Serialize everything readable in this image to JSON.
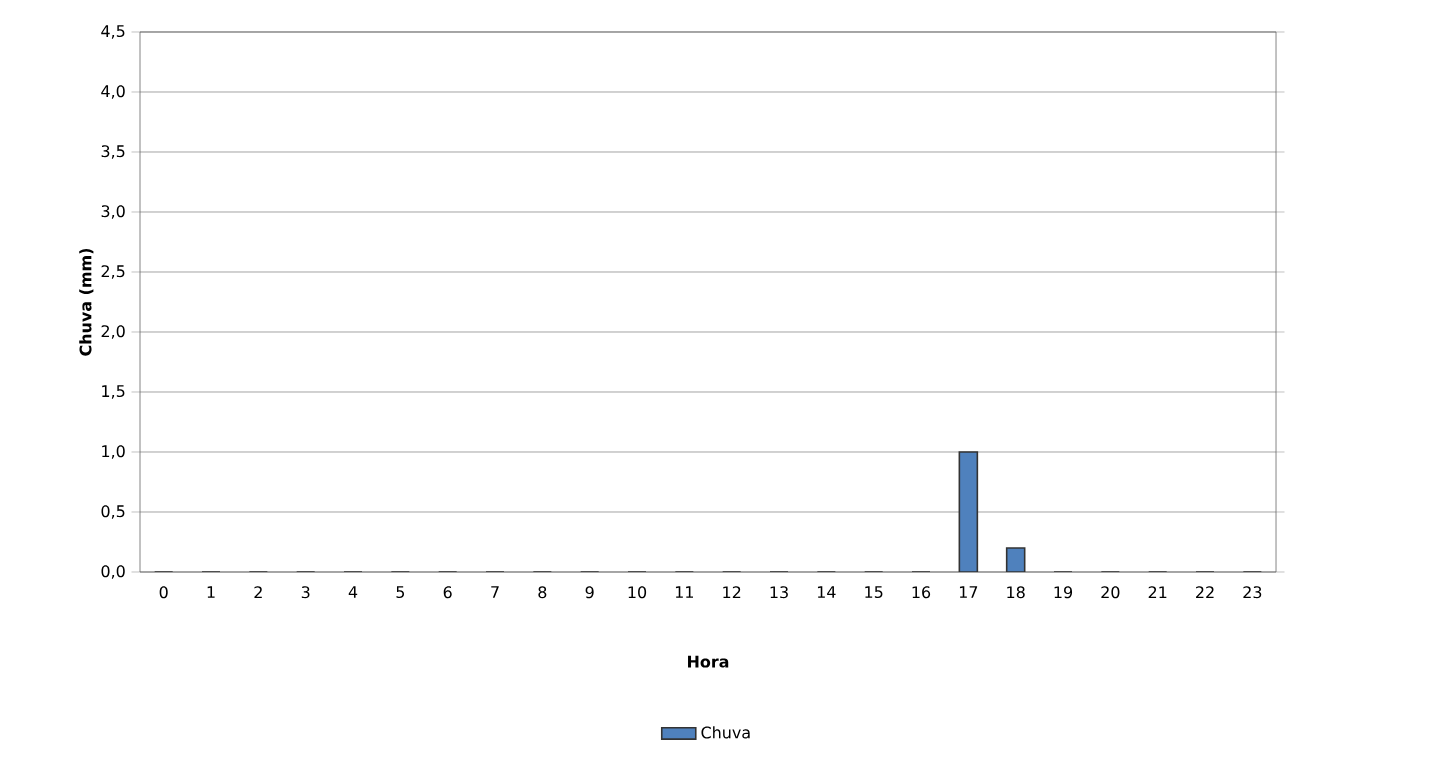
{
  "chart_data": {
    "type": "bar",
    "xlabel": "Hora",
    "ylabel": "Chuva (mm)",
    "categories": [
      "0",
      "1",
      "2",
      "3",
      "4",
      "5",
      "6",
      "7",
      "8",
      "9",
      "10",
      "11",
      "12",
      "13",
      "14",
      "15",
      "16",
      "17",
      "18",
      "19",
      "20",
      "21",
      "22",
      "23"
    ],
    "series": [
      {
        "name": "Chuva",
        "color": "#4f81bd",
        "values": [
          0,
          0,
          0,
          0,
          0,
          0,
          0,
          0,
          0,
          0,
          0,
          0,
          0,
          0,
          0,
          0,
          0,
          1.0,
          0.2,
          0,
          0,
          0,
          0,
          0
        ]
      }
    ],
    "ylim": [
      0,
      4.5
    ],
    "yticks": [
      {
        "value": 0,
        "label": "0,0"
      },
      {
        "value": 0.5,
        "label": "0,5"
      },
      {
        "value": 1,
        "label": "1,0"
      },
      {
        "value": 1.5,
        "label": "1,5"
      },
      {
        "value": 2,
        "label": "2,0"
      },
      {
        "value": 2.5,
        "label": "2,5"
      },
      {
        "value": 3,
        "label": "3,0"
      },
      {
        "value": 3.5,
        "label": "3,5"
      },
      {
        "value": 4,
        "label": "4,0"
      },
      {
        "value": 4.5,
        "label": "4,5"
      }
    ],
    "grid": "y",
    "legend": "bottom"
  }
}
